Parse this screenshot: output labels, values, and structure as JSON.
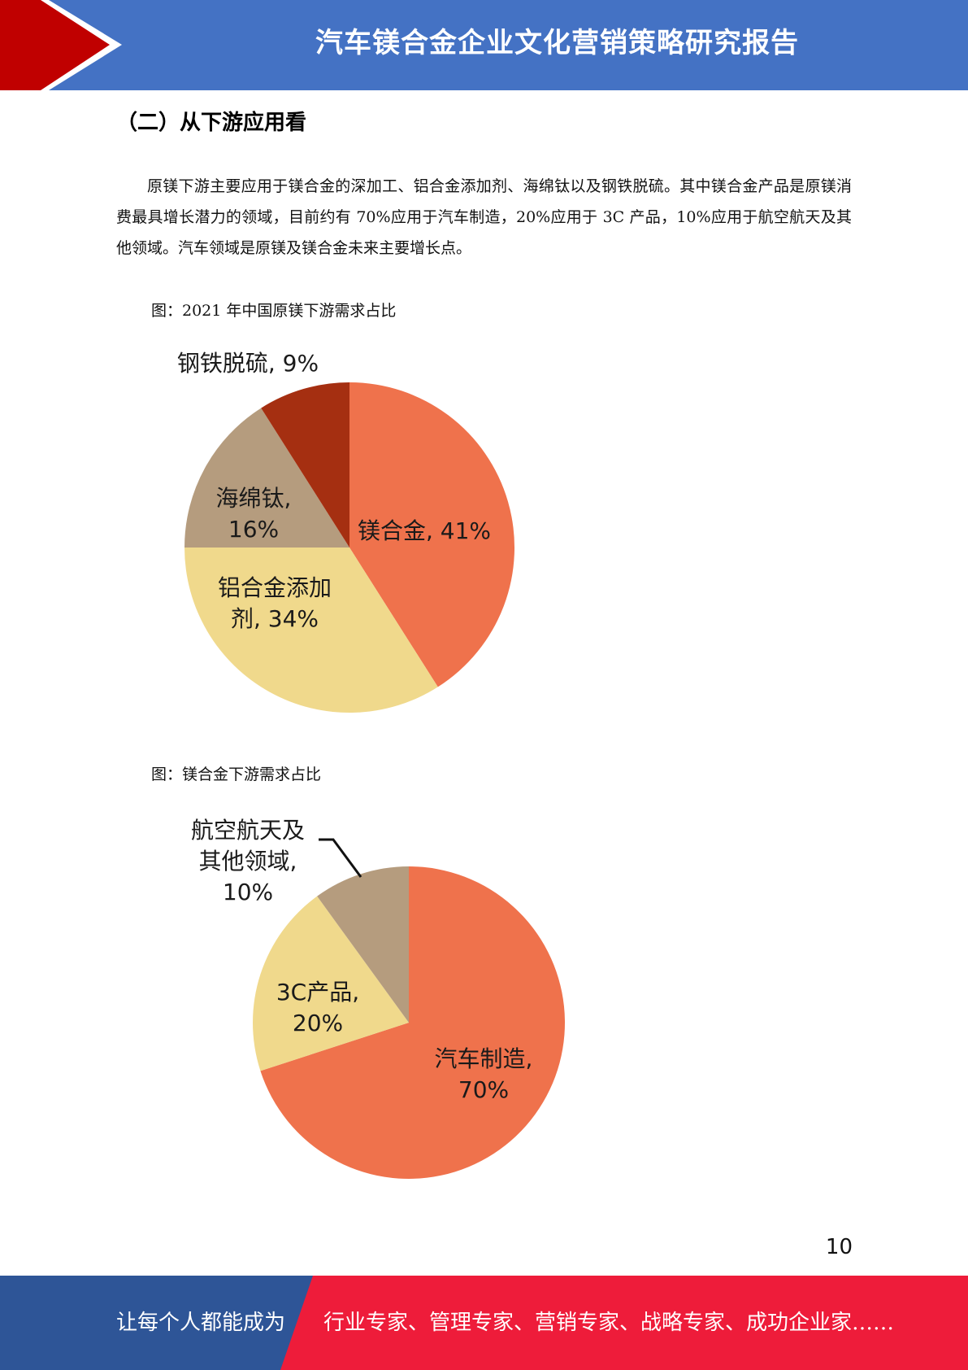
{
  "header": {
    "title": "汽车镁合金企业文化营销策略研究报告"
  },
  "section": {
    "heading": "（二）从下游应用看"
  },
  "body": {
    "paragraph": "原镁下游主要应用于镁合金的深加工、铝合金添加剂、海绵钛以及钢铁脱硫。其中镁合金产品是原镁消费最具增长潜力的领域，目前约有 70%应用于汽车制造，20%应用于 3C 产品，10%应用于航空航天及其他领域。汽车领域是原镁及镁合金未来主要增长点。"
  },
  "figure1": {
    "caption": "图：2021 年中国原镁下游需求占比"
  },
  "figure2": {
    "caption": "图：镁合金下游需求占比"
  },
  "chart_data": [
    {
      "type": "pie",
      "title": "",
      "slices": [
        {
          "label_lines": [
            "镁合金, 41%"
          ],
          "value": 41,
          "color": "#ef724c"
        },
        {
          "label_lines": [
            "铝合金添加",
            "剂, 34%"
          ],
          "value": 34,
          "color": "#f0d98c"
        },
        {
          "label_lines": [
            "海绵钛,",
            "16%"
          ],
          "value": 16,
          "color": "#b59c7e"
        },
        {
          "label_lines": [
            "钢铁脱硫, 9%"
          ],
          "value": 9,
          "color": "#a52f11"
        }
      ]
    },
    {
      "type": "pie",
      "title": "",
      "slices": [
        {
          "label_lines": [
            "汽车制造,",
            "70%"
          ],
          "value": 70,
          "color": "#ef724c"
        },
        {
          "label_lines": [
            "3C产品,",
            "20%"
          ],
          "value": 20,
          "color": "#f0d98c"
        },
        {
          "label_lines": [
            "航空航天及",
            "其他领域,",
            "10%"
          ],
          "value": 10,
          "color": "#b59c7e"
        }
      ]
    }
  ],
  "page": {
    "number": "10"
  },
  "footer": {
    "left_text": "让每个人都能成为",
    "right_text": "行业专家、管理专家、营销专家、战略专家、成功企业家……",
    "left_color": "#2e5597",
    "right_color": "#ee1c3a"
  },
  "theme": {
    "header_blue": "#4472c4",
    "header_red": "#c00000"
  }
}
